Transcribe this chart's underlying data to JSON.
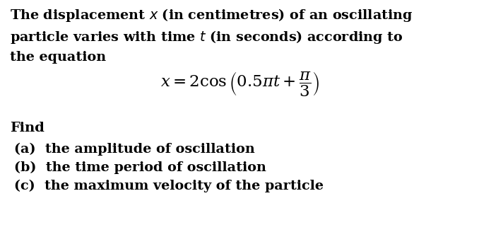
{
  "background_color": "#ffffff",
  "text_color": "#000000",
  "line1": "The displacement $x$ (in centimetres) of an oscillating",
  "line2": "particle varies with time $t$ (in seconds) according to",
  "line3": "the equation",
  "equation": "$x = 2 \\cos \\left( 0.5\\pi t + \\dfrac{\\pi}{3} \\right)$",
  "find_label": "Find",
  "item_a": "(a)  the amplitude of oscillation",
  "item_b": "(b)  the time period of oscillation",
  "item_c": "(c)  the maximum velocity of the particle",
  "para_fontsize": 13.8,
  "eq_fontsize": 16.5,
  "find_fontsize": 14.0,
  "item_fontsize": 13.8
}
